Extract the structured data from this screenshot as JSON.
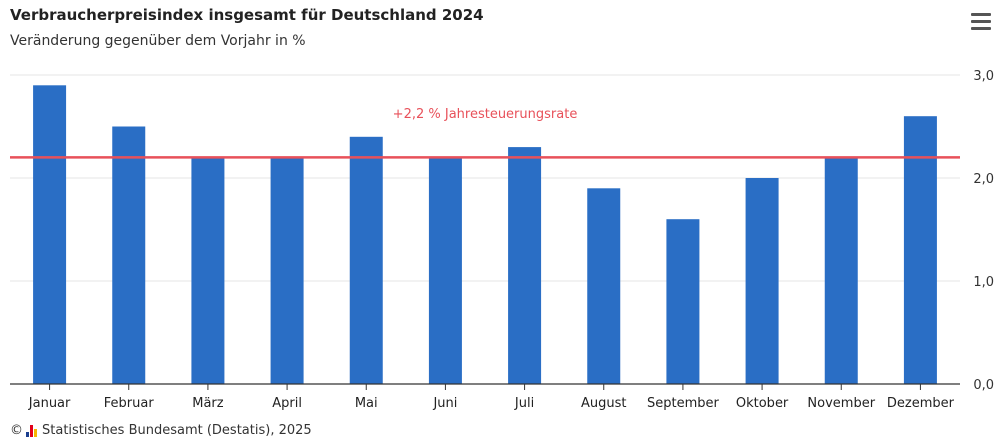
{
  "header": {
    "title": "Verbraucherpreisindex insgesamt für Deutschland 2024",
    "subtitle": "Veränderung gegenüber dem Vorjahr in %"
  },
  "menu": {
    "icon": "hamburger-menu-icon"
  },
  "footer": {
    "copyright_symbol": "©",
    "source": "Statistisches Bundesamt (Destatis), 2025",
    "logo_colors": [
      "#1b3f8f",
      "#e2001a",
      "#f6b500"
    ]
  },
  "chart_data": {
    "type": "bar",
    "categories": [
      "Januar",
      "Februar",
      "März",
      "April",
      "Mai",
      "Juni",
      "Juli",
      "August",
      "September",
      "Oktober",
      "November",
      "Dezember"
    ],
    "values": [
      2.9,
      2.5,
      2.2,
      2.2,
      2.4,
      2.2,
      2.3,
      1.9,
      1.6,
      2.0,
      2.2,
      2.6
    ],
    "ylim": [
      0,
      3
    ],
    "yticks": [
      0,
      1,
      2,
      3
    ],
    "ytick_labels": [
      "0,0",
      "1,0",
      "2,0",
      "3,0"
    ],
    "y_axis_position": "right",
    "grid": true,
    "bar_color": "#2a6ec5",
    "reference_line": {
      "value": 2.2,
      "label": "+2,2 % Jahresteuerungsrate",
      "color": "#e8515a"
    }
  }
}
